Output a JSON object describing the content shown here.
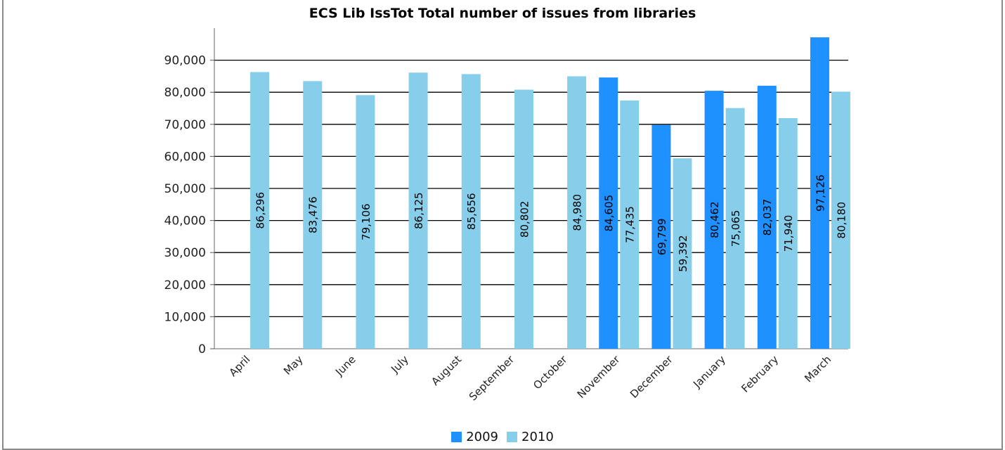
{
  "chart_data": {
    "type": "bar",
    "title": "ECS Lib IssTot Total number of issues from libraries",
    "categories": [
      "April",
      "May",
      "June",
      "July",
      "August",
      "September",
      "October",
      "November",
      "December",
      "January",
      "February",
      "March"
    ],
    "series": [
      {
        "name": "2009",
        "color": "#1e90ff",
        "values": [
          null,
          null,
          null,
          null,
          null,
          null,
          null,
          84605,
          69799,
          80462,
          82037,
          97126
        ],
        "labels": [
          "",
          "",
          "",
          "",
          "",
          "",
          "",
          "84,605",
          "69,799",
          "80,462",
          "82,037",
          "97,126"
        ]
      },
      {
        "name": "2010",
        "color": "#87ceeb",
        "values": [
          86296,
          83476,
          79106,
          86125,
          85656,
          80802,
          84980,
          77435,
          59392,
          75065,
          71940,
          80180
        ],
        "labels": [
          "86,296",
          "83,476",
          "79,106",
          "86,125",
          "85,656",
          "80,802",
          "84,980",
          "77,435",
          "59,392",
          "75,065",
          "71,940",
          "80,180"
        ]
      }
    ],
    "ylim": [
      0,
      100000
    ],
    "yticks": [
      0,
      10000,
      20000,
      30000,
      40000,
      50000,
      60000,
      70000,
      80000,
      90000
    ],
    "ytick_labels": [
      "0",
      "10,000",
      "20,000",
      "30,000",
      "40,000",
      "50,000",
      "60,000",
      "70,000",
      "80,000",
      "90,000"
    ],
    "grid": true,
    "legend_position": "bottom-center",
    "xlabel": "",
    "ylabel": ""
  }
}
